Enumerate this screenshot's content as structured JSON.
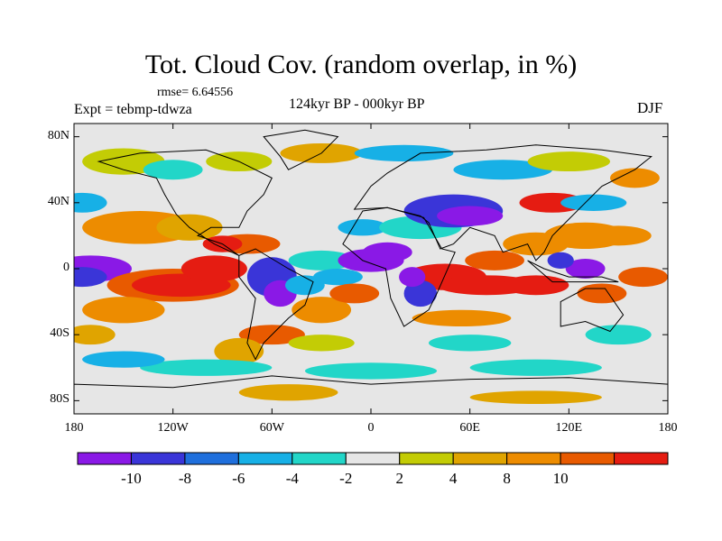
{
  "title": "Tot. Cloud Cov. (random overlap, in %)",
  "rmse": "rmse= 6.64556",
  "experiment": "Expt = tebmp-tdwza",
  "subtitle": "124kyr BP - 000kyr BP",
  "season": "DJF",
  "map": {
    "projection": "cylindrical equidistant",
    "lat_ticks": [
      "80N",
      "40N",
      "0",
      "40S",
      "80S"
    ],
    "lon_ticks": [
      "180",
      "120W",
      "60W",
      "0",
      "60E",
      "120E",
      "180"
    ]
  },
  "colorbar": {
    "colors": [
      "#8a19e6",
      "#3a35d8",
      "#1f6fdc",
      "#17b0e6",
      "#22d6c8",
      "#e6e6e6",
      "#c3cc05",
      "#e0a400",
      "#ed8c00",
      "#e85a00",
      "#e51c12"
    ],
    "tick_labels": [
      "-10",
      "-8",
      "-6",
      "-4",
      "-2",
      "2",
      "4",
      "8",
      "10"
    ]
  }
}
